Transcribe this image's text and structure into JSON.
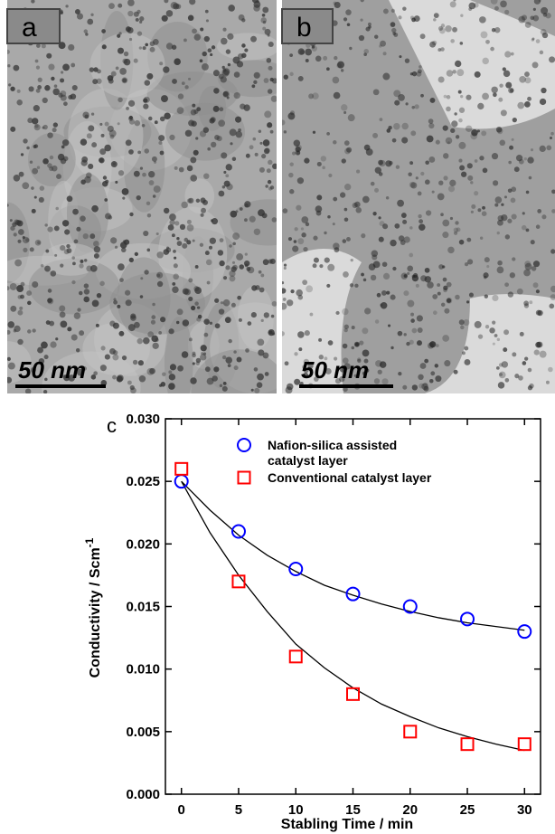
{
  "images": [
    {
      "label": "a",
      "scale_bar": "50 nm"
    },
    {
      "label": "b",
      "scale_bar": "50 nm"
    }
  ],
  "chart_data": {
    "type": "scatter",
    "panel_label": "c",
    "xlabel": "Stabling Time / min",
    "ylabel": "Conductivity / Scm",
    "ylabel_sup": "-1",
    "x": [
      0,
      5,
      10,
      15,
      20,
      25,
      30
    ],
    "series": [
      {
        "name": "Nafion-silica assisted catalyst layer",
        "color": "#0000ff",
        "marker": "circle",
        "values": [
          0.025,
          0.021,
          0.018,
          0.016,
          0.015,
          0.014,
          0.013
        ]
      },
      {
        "name": "Conventional catalyst layer",
        "color": "#ff0000",
        "marker": "square",
        "values": [
          0.026,
          0.017,
          0.011,
          0.008,
          0.005,
          0.004,
          0.004
        ]
      }
    ],
    "fits": [
      {
        "color": "#000000",
        "x": [
          0,
          2.5,
          5,
          7.5,
          10,
          12.5,
          15,
          17.5,
          20,
          22.5,
          25,
          27.5,
          30
        ],
        "values": [
          0.025,
          0.0227,
          0.0207,
          0.0191,
          0.0178,
          0.0167,
          0.0159,
          0.0152,
          0.0146,
          0.0141,
          0.0137,
          0.0134,
          0.0131
        ]
      },
      {
        "color": "#000000",
        "x": [
          0,
          2.5,
          5,
          7.5,
          10,
          12.5,
          15,
          17.5,
          20,
          22.5,
          25,
          27.5,
          30
        ],
        "values": [
          0.025,
          0.0209,
          0.0175,
          0.0146,
          0.012,
          0.0101,
          0.0085,
          0.0072,
          0.0062,
          0.0053,
          0.0046,
          0.004,
          0.0035
        ]
      }
    ],
    "xlim": [
      -1.4,
      31.4
    ],
    "ylim": [
      0,
      0.03
    ],
    "xticks": [
      0,
      5,
      10,
      15,
      20,
      25,
      30
    ],
    "yticks": [
      {
        "value": 0,
        "label": "0.000"
      },
      0.005,
      {
        "value": 0.01,
        "label": "0.010"
      },
      0.015,
      {
        "value": 0.02,
        "label": "0.020"
      },
      0.025,
      {
        "value": 0.03,
        "label": "0.030"
      }
    ]
  }
}
